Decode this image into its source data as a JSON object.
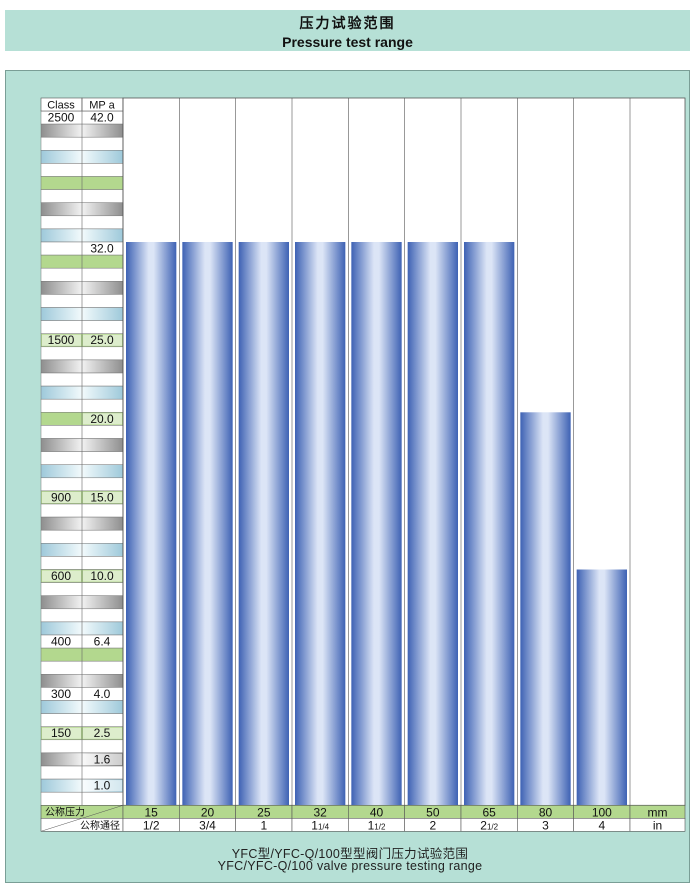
{
  "header": {
    "title_zh": "压力试验范围",
    "title_en": "Pressure test range"
  },
  "caption": {
    "line1": "YFC型/YFC-Q/100型型阀门压力试验范围",
    "line2": "YFC/YFC-Q/100 valve pressure testing range"
  },
  "colors": {
    "background": "#b6e0d6",
    "bar_dark": "#3e62b4",
    "bar_light": "#dce5f6",
    "green_row": "#b3d88e",
    "gray_row": "#c4c4c4",
    "blue_row": "#cfe6ee"
  },
  "chart_data": {
    "type": "bar",
    "scale_header": {
      "class": "Class",
      "mpa": "MP a"
    },
    "scale_labels": [
      {
        "mpa": "42.0",
        "class": "2500"
      },
      {
        "mpa": "32.0",
        "class": ""
      },
      {
        "mpa": "25.0",
        "class": "1500"
      },
      {
        "mpa": "20.0",
        "class": ""
      },
      {
        "mpa": "15.0",
        "class": "900"
      },
      {
        "mpa": "10.0",
        "class": "600"
      },
      {
        "mpa": "6.4",
        "class": "400"
      },
      {
        "mpa": "4.0",
        "class": "300"
      },
      {
        "mpa": "2.5",
        "class": "150"
      },
      {
        "mpa": "1.6",
        "class": ""
      },
      {
        "mpa": "1.0",
        "class": ""
      }
    ],
    "row_label_1": "公称压力",
    "row_label_2": "公称通径",
    "categories_mm": [
      "15",
      "20",
      "25",
      "32",
      "40",
      "50",
      "65",
      "80",
      "100"
    ],
    "categories_in": [
      "1/2",
      "3/4",
      "1",
      "11/4",
      "11/2",
      "2",
      "21/2",
      "3",
      "4"
    ],
    "unit_mm": "mm",
    "unit_in": "in",
    "values": [
      32.0,
      32.0,
      32.0,
      32.0,
      32.0,
      32.0,
      32.0,
      20.0,
      10.0
    ],
    "ylabel": "MP a"
  }
}
